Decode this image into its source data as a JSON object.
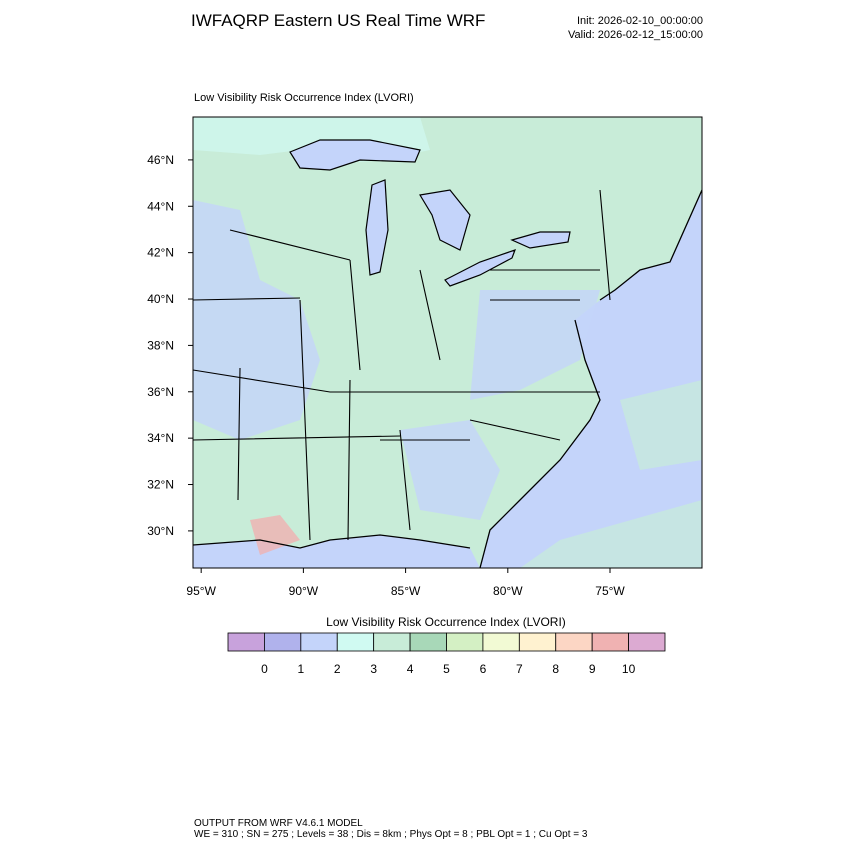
{
  "header": {
    "title": "IWFAQRP Eastern US Real Time WRF",
    "init": "Init: 2026-02-10_00:00:00",
    "valid": "Valid: 2026-02-12_15:00:00"
  },
  "map": {
    "subtitle": "Low Visibility Risk Occurrence Index   (LVORI)",
    "xlim": [
      -95.4,
      -70.5
    ],
    "ylim": [
      28.4,
      47.85
    ],
    "xticks": [
      {
        "value": -95,
        "label": "95°W"
      },
      {
        "value": -90,
        "label": "90°W"
      },
      {
        "value": -85,
        "label": "85°W"
      },
      {
        "value": -80,
        "label": "80°W"
      },
      {
        "value": -75,
        "label": "75°W"
      }
    ],
    "yticks": [
      {
        "value": 30,
        "label": "30°N"
      },
      {
        "value": 32,
        "label": "32°N"
      },
      {
        "value": 34,
        "label": "34°N"
      },
      {
        "value": 36,
        "label": "36°N"
      },
      {
        "value": 38,
        "label": "38°N"
      },
      {
        "value": 40,
        "label": "40°N"
      },
      {
        "value": 42,
        "label": "42°N"
      },
      {
        "value": 44,
        "label": "44°N"
      },
      {
        "value": 46,
        "label": "46°N"
      }
    ]
  },
  "colorbar": {
    "title": "Low Visibility Risk Occurrence Index  (LVORI)",
    "levels": [
      0,
      1,
      2,
      3,
      4,
      5,
      6,
      7,
      8,
      9,
      10
    ],
    "colors": [
      "#c8a2dc",
      "#b0b2ec",
      "#c4d4fa",
      "#d0faf2",
      "#c8ecd8",
      "#a8d8b8",
      "#d4f0c4",
      "#f2fad4",
      "#fff2d0",
      "#fcd6c4",
      "#f0b2b2",
      "#dcaad2"
    ]
  },
  "footer": {
    "line1": "OUTPUT FROM WRF V4.6.1 MODEL",
    "line2": "WE = 310 ; SN = 275 ; Levels = 38 ; Dis = 8km ; Phys Opt = 8 ; PBL Opt = 1 ; Cu Opt = 3"
  }
}
